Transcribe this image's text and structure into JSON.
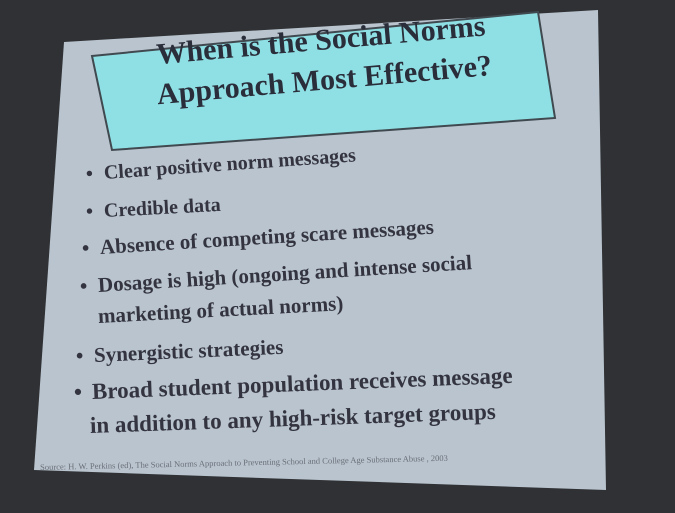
{
  "slide": {
    "title": [
      "When is the Social Norms",
      "Approach Most Effective?"
    ],
    "bullets": [
      [
        "Clear positive norm messages"
      ],
      [
        "Credible data"
      ],
      [
        "Absence of competing scare messages"
      ],
      [
        "Dosage is high (ongoing and intense social",
        "marketing of actual norms)"
      ],
      [
        "Synergistic strategies"
      ],
      [
        "Broad student population receives message",
        "in addition to any high-risk target groups"
      ]
    ],
    "source": "Source: H. W. Perkins (ed), The Social Norms Approach to Preventing School and College Age Substance Abuse , 2003"
  }
}
